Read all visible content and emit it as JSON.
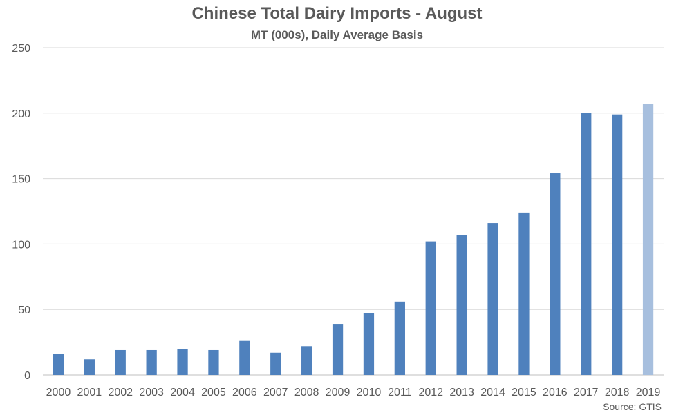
{
  "chart_data": {
    "type": "bar",
    "title": "Chinese Total Dairy Imports - August",
    "subtitle": "MT (000s), Daily Average Basis",
    "xlabel": "",
    "ylabel": "",
    "categories": [
      "2000",
      "2001",
      "2002",
      "2003",
      "2004",
      "2005",
      "2006",
      "2007",
      "2008",
      "2009",
      "2010",
      "2011",
      "2012",
      "2013",
      "2014",
      "2015",
      "2016",
      "2017",
      "2018",
      "2019"
    ],
    "values": [
      16,
      12,
      19,
      19,
      20,
      19,
      26,
      17,
      22,
      39,
      47,
      56,
      102,
      107,
      116,
      124,
      154,
      200,
      199,
      207
    ],
    "ylim": [
      0,
      250
    ],
    "yticks": [
      0,
      50,
      100,
      150,
      200,
      250
    ],
    "grid": true,
    "legend": "none",
    "colors": {
      "bar": "#4f81bd",
      "highlight_bar": "#a7bfde",
      "grid": "#d9d9d9",
      "text": "#595959"
    },
    "highlight_index": 19,
    "source": "Source: GTIS"
  }
}
